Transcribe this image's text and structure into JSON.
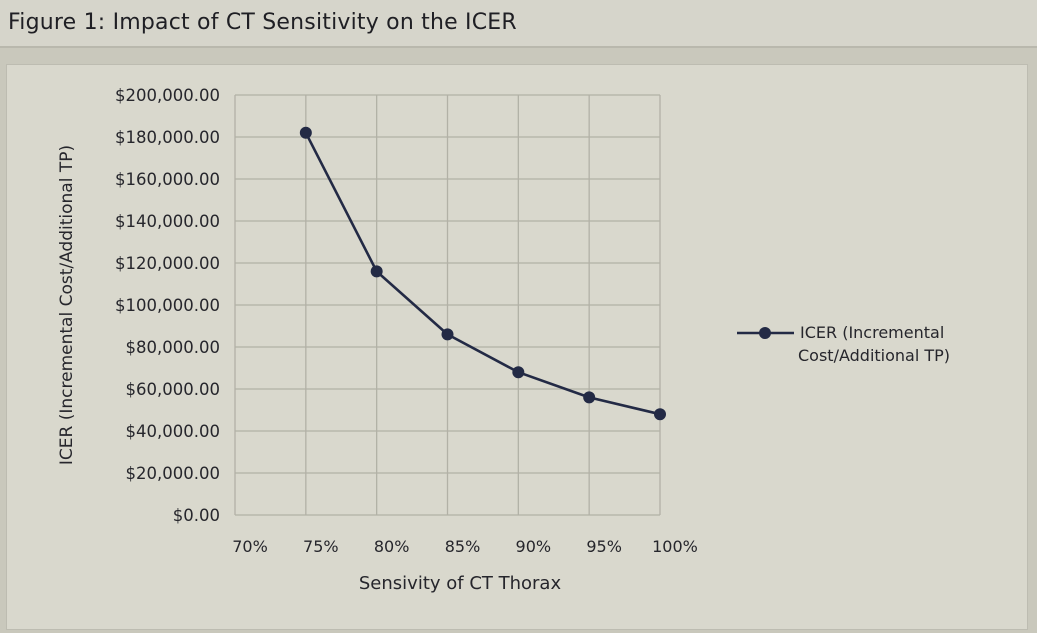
{
  "figure_title": "Figure 1: Impact of CT Sensitivity on the ICER",
  "colors": {
    "series": "#232a45",
    "grid": "#b2b1a6",
    "text": "#26262c",
    "plot_bg": "#d9d8cd",
    "page_bg": "#c9c8bc"
  },
  "chart_data": {
    "type": "line",
    "title": "",
    "xlabel": "Sensivity of CT Thorax",
    "ylabel": "ICER (Incremental Cost/Additional TP)",
    "x_ticks": [
      "70%",
      "75%",
      "80%",
      "85%",
      "90%",
      "95%",
      "100%"
    ],
    "y_ticks": [
      "$200,000.00",
      "$180,000.00",
      "$160,000.00",
      "$140,000.00",
      "$120,000.00",
      "$100,000.00",
      "$80,000.00",
      "$60,000.00",
      "$40,000.00",
      "$20,000.00",
      "$0.00"
    ],
    "xlim": [
      70,
      100
    ],
    "ylim": [
      0,
      200000
    ],
    "grid": true,
    "legend_position": "right",
    "series": [
      {
        "name": "ICER (Incremental Cost/Additional TP)",
        "marker": "circle",
        "x": [
          75,
          80,
          85,
          90,
          95,
          100
        ],
        "y": [
          182000,
          116000,
          86000,
          68000,
          56000,
          48000
        ]
      }
    ],
    "legend_lines": [
      "ICER (Incremental",
      "Cost/Additional TP)"
    ]
  }
}
